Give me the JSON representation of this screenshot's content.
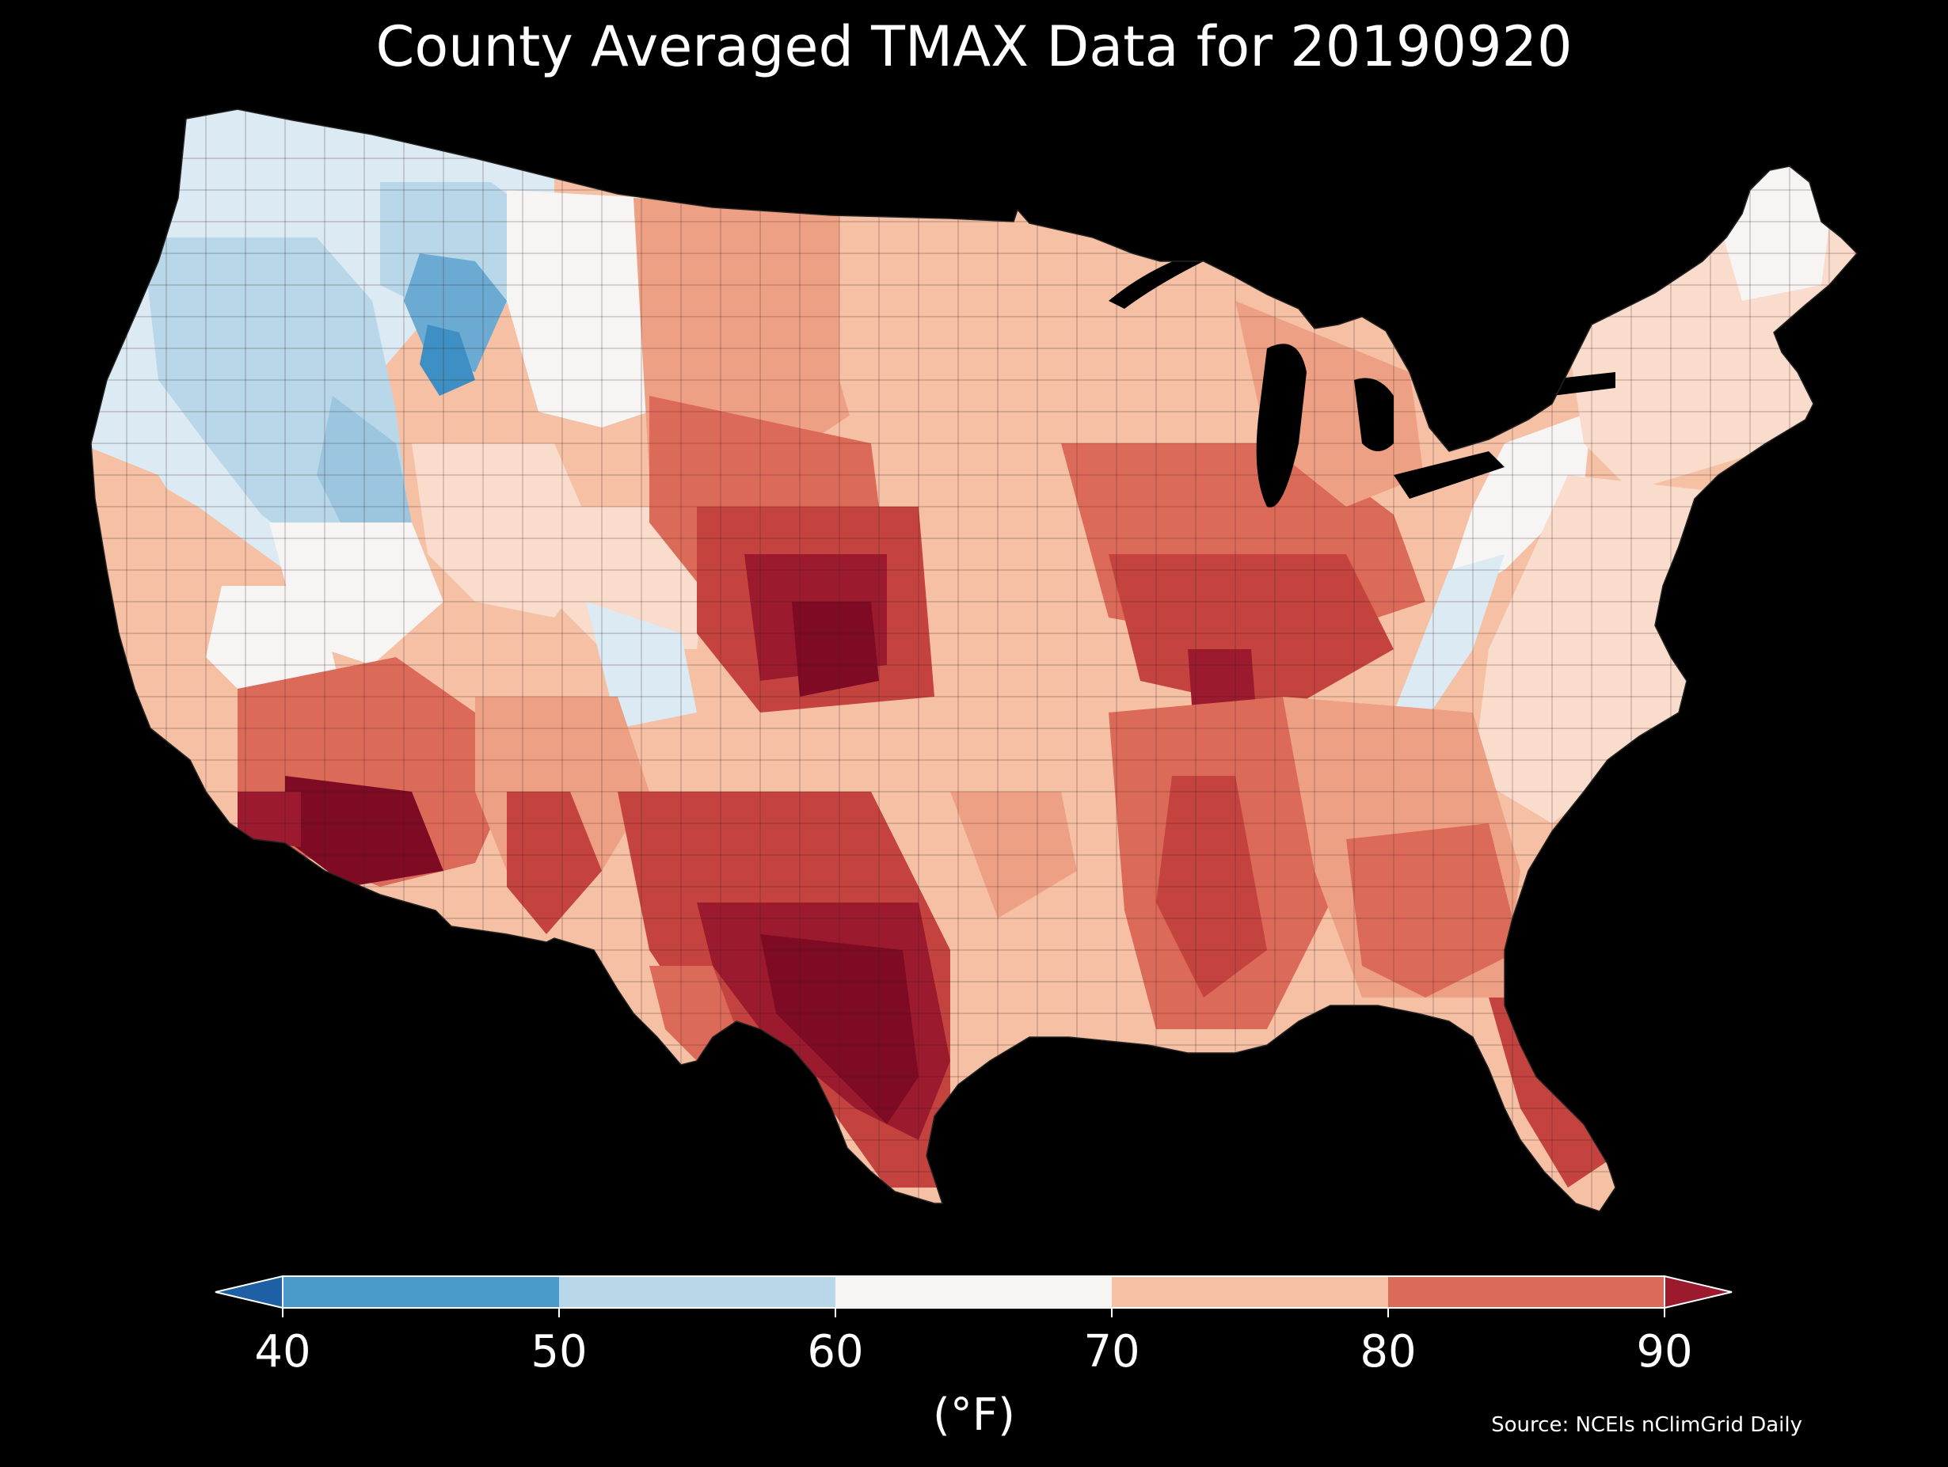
{
  "title": "County Averaged TMAX Data for 20190920",
  "colorbar": {
    "units_label": "(°F)",
    "ticks": [
      "40",
      "50",
      "60",
      "70",
      "80",
      "90"
    ],
    "extend": "both",
    "bins": [
      {
        "range": [
          -999,
          40
        ],
        "color": "#1f5fa3"
      },
      {
        "range": [
          40,
          50
        ],
        "color": "#4a9bc9"
      },
      {
        "range": [
          50,
          60
        ],
        "color": "#b8d8ea"
      },
      {
        "range": [
          60,
          70
        ],
        "color": "#f6f5f4"
      },
      {
        "range": [
          70,
          80
        ],
        "color": "#f6c0a5"
      },
      {
        "range": [
          80,
          90
        ],
        "color": "#dc6a58"
      },
      {
        "range": [
          90,
          999
        ],
        "color": "#9c1a2e"
      }
    ]
  },
  "source": "Source: NCEIs nClimGrid Daily",
  "map": {
    "region": "Contiguous United States",
    "variable": "TMAX",
    "background": "#000000",
    "palette": {
      "deep_blue": "#3e8fc4",
      "blue": "#6aaad3",
      "light_blue": "#b8d8ea",
      "pale_blue": "#dbeaf3",
      "white": "#f6f5f4",
      "pale_pink": "#f9dccc",
      "light_salmon": "#f6c0a5",
      "salmon": "#eea084",
      "coral": "#dc6a58",
      "red": "#c5433f",
      "dark_red": "#a31d2f",
      "deepest_red": "#7e0a24"
    }
  }
}
